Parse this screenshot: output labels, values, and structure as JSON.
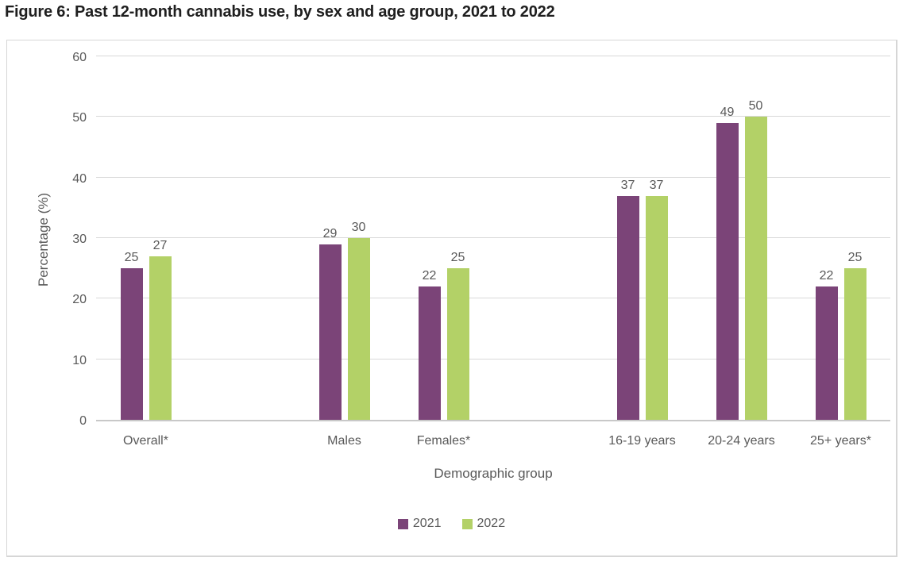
{
  "figure": {
    "title": "Figure 6: Past 12-month cannabis use, by sex and age group, 2021 to 2022"
  },
  "chart_data": {
    "type": "bar",
    "categories": [
      "Overall*",
      "Males",
      "Females*",
      "16-19 years",
      "20-24 years",
      "25+ years*"
    ],
    "series": [
      {
        "name": "2021",
        "color": "#7b4478",
        "values": [
          25,
          29,
          22,
          37,
          49,
          22
        ]
      },
      {
        "name": "2022",
        "color": "#b3d167",
        "values": [
          27,
          30,
          25,
          37,
          50,
          25
        ]
      }
    ],
    "title": "Figure 6: Past 12-month cannabis use, by sex and age group, 2021 to 2022",
    "xlabel": "Demographic group",
    "ylabel": "Percentage (%)",
    "ylim": [
      0,
      60
    ],
    "ytick_step": 10,
    "yticks": [
      0,
      10,
      20,
      30,
      40,
      50,
      60
    ],
    "grid": true,
    "value_labels": true,
    "legend_position": "bottom",
    "slot_order": [
      0,
      null,
      1,
      2,
      null,
      3,
      4,
      5
    ]
  },
  "colors": {
    "series_2021": "#7b4478",
    "series_2022": "#b3d167",
    "gridline": "#d9d9d9",
    "axis_text": "#595959",
    "title_text": "#1f1f1f",
    "chart_border": "#d6d6d6"
  }
}
